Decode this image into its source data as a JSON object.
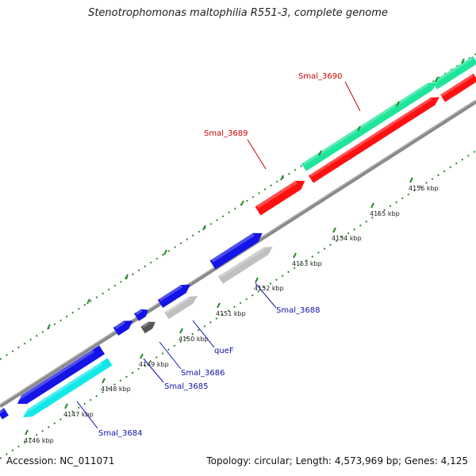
{
  "title": "Stenotrophomonas maltophilia R551-3, complete genome",
  "footer": {
    "accession": "Accession: NC_011071",
    "summary": "Topology: circular; Length: 4,573,969 bp; Genes: 4,125"
  },
  "colors": {
    "forward_cds": "#1fe59a",
    "reverse_cds_red": "#ff1010",
    "reverse_cds_blue": "#1414e6",
    "cyan_cds": "#12e8e8",
    "gray_cds": "#c0c0c0",
    "dark_cds": "#555555",
    "backbone": "#888888",
    "ticks": "#2a8a2a",
    "label_red": "#cc0000",
    "label_blue": "#1010aa"
  },
  "ticks": [
    {
      "label": "4146 kbp"
    },
    {
      "label": "4147 kbp"
    },
    {
      "label": "4148 kbp"
    },
    {
      "label": "4149 kbp"
    },
    {
      "label": "4150 kbp"
    },
    {
      "label": "4151 kbp"
    },
    {
      "label": "4152 kbp"
    },
    {
      "label": "4153 kbp"
    },
    {
      "label": "4154 kbp"
    },
    {
      "label": "4155 kbp"
    },
    {
      "label": "4156 kbp"
    }
  ],
  "genes": [
    {
      "label": "Smal_3690",
      "color": "red"
    },
    {
      "label": "Smal_3689",
      "color": "red"
    },
    {
      "label": "Smal_3688",
      "color": "blue"
    },
    {
      "label": "queF",
      "color": "blue"
    },
    {
      "label": "Smal_3686",
      "color": "blue"
    },
    {
      "label": "Smal_3685",
      "color": "blue"
    },
    {
      "label": "Smal_3684",
      "color": "blue"
    }
  ]
}
